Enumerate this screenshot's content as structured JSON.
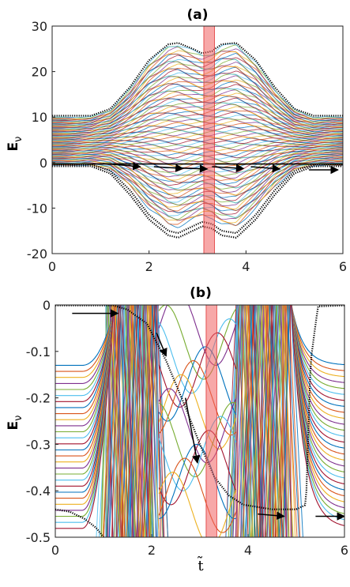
{
  "chart_data": [
    {
      "panel": "(a)",
      "type": "line",
      "title": "(a)",
      "ylabel": "E",
      "ylabel_sub": "ν",
      "xlabel": "",
      "xlim": [
        0,
        6
      ],
      "ylim": [
        -20,
        30
      ],
      "xticks": [
        "0",
        "2",
        "4",
        "6"
      ],
      "xtick_values": [
        0,
        2,
        4,
        6
      ],
      "yticks": [
        "-20",
        "-10",
        "0",
        "10",
        "20",
        "30"
      ],
      "ytick_values": [
        -20,
        -10,
        0,
        10,
        20,
        30
      ],
      "band_envelope": {
        "description": "dense spectrum of many colored levels, bounded by outer black dotted levels",
        "t": [
          0,
          0.8,
          1.2,
          1.6,
          2.0,
          2.4,
          2.6,
          2.9,
          3.1,
          3.3,
          3.5,
          3.8,
          4.2,
          4.6,
          5.0,
          5.4,
          6.0
        ],
        "upper": [
          10,
          10,
          11.5,
          16,
          22,
          25.5,
          26,
          24.5,
          23.5,
          24,
          25.5,
          26,
          22,
          16,
          11.5,
          10,
          10
        ],
        "lower": [
          -0.6,
          -0.6,
          -1.5,
          -5,
          -10,
          -13.5,
          -14,
          -12.5,
          -11.5,
          -12,
          -13.5,
          -14,
          -10,
          -5,
          -1.5,
          -0.6,
          -0.6
        ],
        "outer_upper": [
          10.3,
          10.3,
          11.8,
          16.5,
          22.5,
          26,
          26.3,
          25,
          24,
          24.5,
          26,
          26.3,
          22.5,
          16.5,
          11.8,
          10.3,
          10.3
        ],
        "outer_lower_1": [
          -0.4,
          -0.4,
          -1.8,
          -6,
          -11.5,
          -15,
          -15.5,
          -14,
          -13,
          -13.5,
          -15,
          -15.5,
          -11.5,
          -6,
          -1.8,
          -0.4,
          -0.4
        ],
        "outer_lower_2": [
          -0.8,
          -0.8,
          -2.4,
          -7,
          -12.5,
          -16,
          -16.5,
          -15,
          -14,
          -14.5,
          -16,
          -16.5,
          -12.5,
          -7,
          -2.4,
          -0.8,
          -0.8
        ]
      },
      "highlight_band": {
        "x": [
          3.13,
          3.35
        ],
        "color": "#f06060"
      },
      "arrows": [
        {
          "x": [
            1.05,
            1.82
          ],
          "y": [
            -0.2,
            -0.9
          ]
        },
        {
          "x": [
            2.1,
            2.7
          ],
          "y": [
            -0.9,
            -1.3
          ]
        },
        {
          "x": [
            2.6,
            3.2
          ],
          "y": [
            -1.2,
            -1.4
          ]
        },
        {
          "x": [
            3.3,
            3.95
          ],
          "y": [
            -0.9,
            -1.3
          ]
        },
        {
          "x": [
            4.1,
            4.7
          ],
          "y": [
            -0.9,
            -1.4
          ]
        },
        {
          "x": [
            5.3,
            5.9
          ],
          "y": [
            -1.6,
            -1.6
          ]
        }
      ]
    },
    {
      "panel": "(b)",
      "type": "line",
      "title": "(b)",
      "ylabel": "E",
      "ylabel_sub": "ν",
      "xlabel": "t̃",
      "xlim": [
        0,
        6
      ],
      "ylim": [
        -0.5,
        0
      ],
      "xticks": [
        "0",
        "2",
        "4",
        "6"
      ],
      "xtick_values": [
        0,
        2,
        4,
        6
      ],
      "yticks": [
        "-0.5",
        "-0.4",
        "-0.3",
        "-0.2",
        "-0.1",
        "0"
      ],
      "ytick_values": [
        -0.5,
        -0.4,
        -0.3,
        -0.2,
        -0.1,
        0
      ],
      "dense_regions": [
        [
          1.05,
          2.15
        ],
        [
          3.75,
          4.9
        ]
      ],
      "tracked_level": {
        "t": [
          0,
          0.9,
          1.2,
          1.5,
          1.9,
          2.3,
          2.7,
          3.0,
          3.3,
          3.6,
          3.9,
          4.5,
          5.0,
          5.2,
          5.3,
          5.45,
          6.0
        ],
        "E": [
          -0.001,
          -0.001,
          -0.001,
          -0.01,
          -0.04,
          -0.12,
          -0.22,
          -0.3,
          -0.37,
          -0.41,
          -0.43,
          -0.44,
          -0.44,
          -0.43,
          -0.12,
          -0.003,
          -0.001
        ]
      },
      "lower_dotted_level": {
        "t": [
          0,
          0.3,
          0.6,
          0.85,
          1.0
        ],
        "E": [
          -0.44,
          -0.445,
          -0.46,
          -0.48,
          -0.5
        ]
      },
      "highlight_band": {
        "x": [
          3.13,
          3.35
        ],
        "color": "#f06060"
      },
      "arrows": [
        {
          "x": [
            0.35,
            1.3
          ],
          "y": [
            -0.018,
            -0.018
          ]
        },
        {
          "x": [
            2.1,
            2.3
          ],
          "y": [
            -0.06,
            -0.11
          ]
        },
        {
          "x": [
            2.7,
            2.95
          ],
          "y": [
            -0.2,
            -0.34
          ]
        },
        {
          "x": [
            4.2,
            4.75
          ],
          "y": [
            -0.45,
            -0.455
          ]
        },
        {
          "x": [
            5.4,
            6.0
          ],
          "y": [
            -0.455,
            -0.455
          ]
        }
      ]
    }
  ]
}
